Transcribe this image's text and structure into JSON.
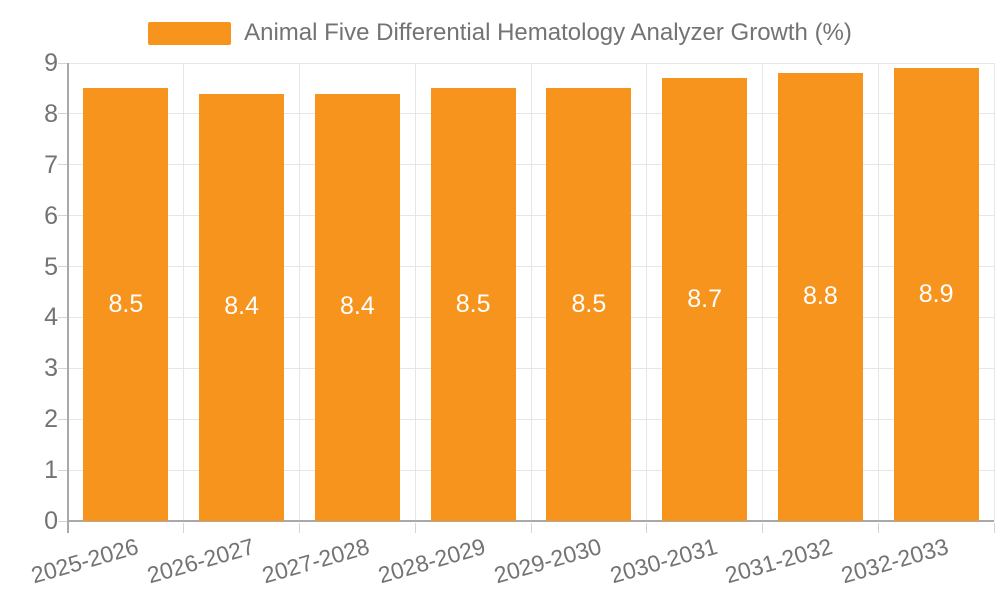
{
  "page": {
    "background": "#FFFFFF"
  },
  "legend": {
    "label": "Animal Five Differential Hematology Analyzer Growth (%)"
  },
  "chart_data": {
    "type": "bar",
    "title": "",
    "categories": [
      "2025-2026",
      "2026-2027",
      "2027-2028",
      "2028-2029",
      "2029-2030",
      "2030-2031",
      "2031-2032",
      "2032-2033"
    ],
    "series": [
      {
        "name": "Animal Five Differential Hematology Analyzer Growth (%)",
        "values": [
          8.5,
          8.4,
          8.4,
          8.5,
          8.5,
          8.7,
          8.8,
          8.9
        ]
      }
    ],
    "bar_value_labels": [
      "8.5",
      "8.4",
      "8.4",
      "8.5",
      "8.5",
      "8.7",
      "8.8",
      "8.9"
    ],
    "xlabel": "",
    "ylabel": "",
    "ylim": [
      0,
      9
    ],
    "y_ticks": [
      0,
      1,
      2,
      3,
      4,
      5,
      6,
      7,
      8,
      9
    ],
    "grid": true,
    "legend_position": "top-center",
    "x_label_rotation_deg": -16,
    "colors": {
      "bar": "#F7941D",
      "bar_label": "#FFFFFF",
      "axis_line": "#A9A9A9",
      "grid_line": "#E6E6E6",
      "tick_line": "#D4D4D4",
      "text": "#737373",
      "background": "#FFFFFF"
    }
  }
}
